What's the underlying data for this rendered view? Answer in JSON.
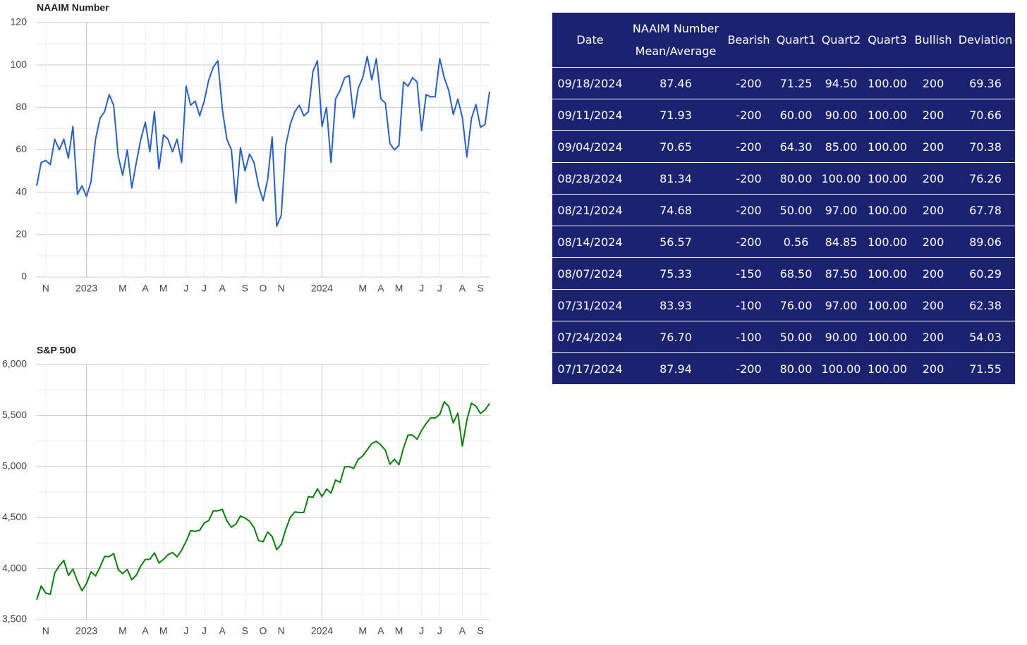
{
  "chart_data": [
    {
      "type": "line",
      "title": "NAAIM Number",
      "categories": [
        null,
        null,
        "N",
        null,
        null,
        null,
        null,
        null,
        null,
        null,
        null,
        "2023",
        null,
        null,
        null,
        null,
        null,
        null,
        null,
        "M",
        null,
        null,
        null,
        null,
        "A",
        null,
        null,
        null,
        "M",
        null,
        null,
        null,
        null,
        "J",
        null,
        null,
        null,
        "J",
        null,
        null,
        null,
        "A",
        null,
        null,
        null,
        null,
        "S",
        null,
        null,
        null,
        "O",
        null,
        null,
        null,
        "N",
        null,
        null,
        null,
        null,
        null,
        null,
        null,
        null,
        "2024",
        null,
        null,
        null,
        null,
        null,
        null,
        null,
        null,
        "M",
        null,
        null,
        null,
        "A",
        null,
        null,
        null,
        "M",
        null,
        null,
        null,
        null,
        "J",
        null,
        null,
        null,
        "J",
        null,
        null,
        null,
        null,
        "A",
        null,
        null,
        null,
        "S",
        null,
        null
      ],
      "series": [
        {
          "color": "#2a5fc4",
          "values": [
            43,
            54,
            55,
            53,
            65,
            60,
            65,
            56,
            71,
            39,
            43,
            38,
            45,
            65,
            75,
            78,
            86,
            81,
            57,
            48,
            60,
            42,
            54,
            65,
            73,
            59,
            78,
            51,
            67,
            65,
            59,
            65,
            54,
            90,
            81,
            83,
            76,
            83,
            93,
            99,
            102,
            79,
            65,
            60,
            35,
            61,
            50,
            58,
            54,
            43,
            36,
            46,
            66,
            24,
            29,
            62,
            72,
            78,
            81,
            76,
            78,
            97,
            102,
            71,
            80,
            54,
            84,
            88,
            94,
            95,
            75,
            89,
            94,
            104,
            93,
            103,
            84,
            82,
            63,
            60,
            62,
            92,
            90,
            94,
            92,
            69,
            86,
            85,
            85,
            103,
            94,
            87.94,
            76.7,
            83.93,
            75.33,
            56.57,
            74.68,
            81.34,
            70.65,
            71.93,
            87.46
          ]
        }
      ],
      "ylim": [
        0,
        120
      ],
      "yticks": [
        0,
        20,
        40,
        60,
        80,
        100,
        120
      ],
      "grid": true
    },
    {
      "type": "line",
      "title": "S&P 500",
      "categories": [
        null,
        null,
        "N",
        null,
        null,
        null,
        null,
        null,
        null,
        null,
        null,
        "2023",
        null,
        null,
        null,
        null,
        null,
        null,
        null,
        "M",
        null,
        null,
        null,
        null,
        "A",
        null,
        null,
        null,
        "M",
        null,
        null,
        null,
        null,
        "J",
        null,
        null,
        null,
        "J",
        null,
        null,
        null,
        "A",
        null,
        null,
        null,
        null,
        "S",
        null,
        null,
        null,
        "O",
        null,
        null,
        null,
        "N",
        null,
        null,
        null,
        null,
        null,
        null,
        null,
        null,
        "2024",
        null,
        null,
        null,
        null,
        null,
        null,
        null,
        null,
        "M",
        null,
        null,
        null,
        "A",
        null,
        null,
        null,
        "M",
        null,
        null,
        null,
        null,
        "J",
        null,
        null,
        null,
        "J",
        null,
        null,
        null,
        null,
        "A",
        null,
        null,
        null,
        "S",
        null,
        null
      ],
      "series": [
        {
          "color": "#0b7d0b",
          "values": [
            3695,
            3830,
            3760,
            3748,
            3958,
            4027,
            4080,
            3933,
            3995,
            3878,
            3783,
            3853,
            3969,
            3928,
            4016,
            4119,
            4117,
            4147,
            3991,
            3951,
            3992,
            3891,
            3936,
            4027,
            4090,
            4091,
            4154,
            4055,
            4090,
            4137,
            4158,
            4115,
            4180,
            4267,
            4372,
            4365,
            4376,
            4446,
            4472,
            4565,
            4566,
            4580,
            4467,
            4405,
            4436,
            4515,
            4496,
            4465,
            4402,
            4274,
            4263,
            4358,
            4314,
            4186,
            4237,
            4383,
            4502,
            4555,
            4550,
            4550,
            4705,
            4698,
            4782,
            4705,
            4780,
            4739,
            4868,
            4845,
            4995,
            5000,
            4981,
            5070,
            5104,
            5165,
            5225,
            5248,
            5211,
            5160,
            5022,
            5071,
            5018,
            5181,
            5308,
            5308,
            5267,
            5354,
            5421,
            5478,
            5475,
            5510,
            5634,
            5588,
            5427,
            5522,
            5200,
            5455,
            5620,
            5592,
            5520,
            5554,
            5618
          ]
        }
      ],
      "ylim": [
        3500,
        6000
      ],
      "yticks": [
        {
          "value": 3500,
          "label": "3,500"
        },
        {
          "value": 4000,
          "label": "4,000"
        },
        {
          "value": 4500,
          "label": "4,500"
        },
        {
          "value": 5000,
          "label": "5,000"
        },
        {
          "value": 5500,
          "label": "5,500"
        },
        {
          "value": 6000,
          "label": "6,000"
        }
      ],
      "grid": true
    }
  ],
  "table": {
    "headers": [
      [
        "Date"
      ],
      [
        "NAAIM Number",
        "Mean/Average"
      ],
      [
        "Bearish"
      ],
      [
        "Quart1"
      ],
      [
        "Quart2"
      ],
      [
        "Quart3"
      ],
      [
        "Bullish"
      ],
      [
        "Deviation"
      ]
    ],
    "rows": [
      [
        "09/18/2024",
        "87.46",
        "-200",
        "71.25",
        "94.50",
        "100.00",
        "200",
        "69.36"
      ],
      [
        "09/11/2024",
        "71.93",
        "-200",
        "60.00",
        "90.00",
        "100.00",
        "200",
        "70.66"
      ],
      [
        "09/04/2024",
        "70.65",
        "-200",
        "64.30",
        "85.00",
        "100.00",
        "200",
        "70.38"
      ],
      [
        "08/28/2024",
        "81.34",
        "-200",
        "80.00",
        "100.00",
        "100.00",
        "200",
        "76.26"
      ],
      [
        "08/21/2024",
        "74.68",
        "-200",
        "50.00",
        "97.00",
        "100.00",
        "200",
        "67.78"
      ],
      [
        "08/14/2024",
        "56.57",
        "-200",
        "0.56",
        "84.85",
        "100.00",
        "200",
        "89.06"
      ],
      [
        "08/07/2024",
        "75.33",
        "-150",
        "68.50",
        "87.50",
        "100.00",
        "200",
        "60.29"
      ],
      [
        "07/31/2024",
        "83.93",
        "-100",
        "76.00",
        "97.00",
        "100.00",
        "200",
        "62.38"
      ],
      [
        "07/24/2024",
        "76.70",
        "-100",
        "50.00",
        "90.00",
        "100.00",
        "200",
        "54.03"
      ],
      [
        "07/17/2024",
        "87.94",
        "-200",
        "80.00",
        "100.00",
        "100.00",
        "200",
        "71.55"
      ]
    ]
  }
}
